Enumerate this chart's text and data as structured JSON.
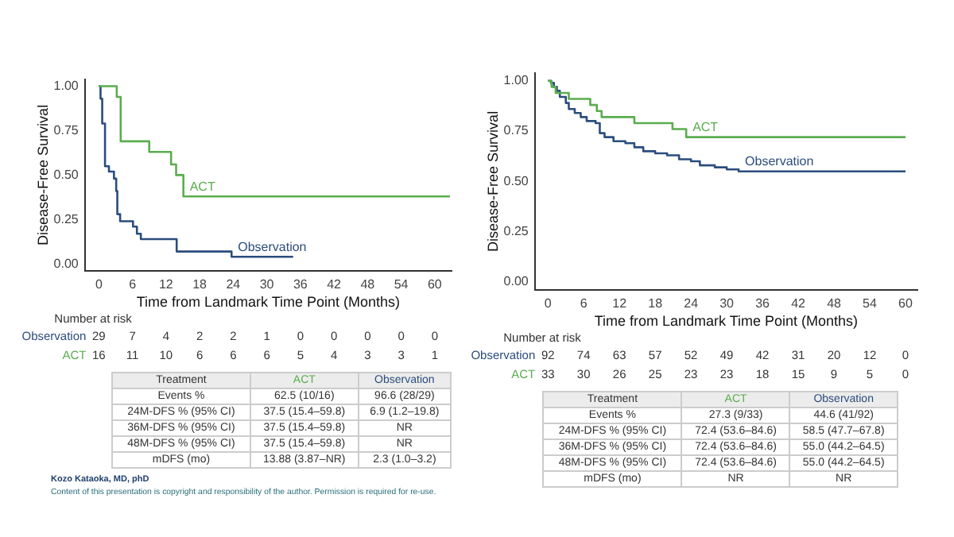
{
  "chart_data": [
    {
      "type": "step",
      "xlabel": "Time from Landmark Time Point (Months)",
      "ylabel": "Disease-Free Survival",
      "xlim": [
        -2.5,
        63
      ],
      "xticks": [
        0,
        6,
        12,
        18,
        24,
        30,
        36,
        42,
        48,
        54,
        60
      ],
      "ylim": [
        -0.04,
        1.04
      ],
      "yticks": [
        {
          "value": 0,
          "label": "0.00"
        },
        {
          "value": 0.25,
          "label": "0.25"
        },
        {
          "value": 0.5,
          "label": "0.50"
        },
        {
          "value": 0.75,
          "label": "0.75"
        },
        {
          "value": 1,
          "label": "1.00"
        }
      ],
      "grid": false,
      "legend": false,
      "marker": "none",
      "line_style": "solid",
      "series": [
        {
          "name": "ACT",
          "color": "#5aad4e",
          "x": [
            0,
            3.2,
            3.9,
            9.0,
            12.9,
            13.8,
            15.1,
            62.7
          ],
          "values": [
            1.0,
            0.94,
            0.69,
            0.63,
            0.56,
            0.5,
            0.38,
            0.38
          ]
        },
        {
          "name": "Observation",
          "color": "#2b4c7e",
          "x": [
            0,
            0.3,
            0.6,
            1.1,
            1.8,
            2.7,
            3.1,
            3.3,
            3.8,
            6.1,
            6.8,
            7.5,
            13.9,
            23.7,
            34.7
          ],
          "values": [
            1.0,
            0.93,
            0.79,
            0.55,
            0.52,
            0.48,
            0.41,
            0.28,
            0.24,
            0.21,
            0.17,
            0.14,
            0.07,
            0.04,
            0.04
          ]
        }
      ],
      "annotations": [
        "Number at risk",
        "Observation\t29\t7\t4\t2\t2\t1\t0\t0\t0\t0\t0",
        "ACT\t16\t11\t10\t6\t6\t6\t5\t4\t3\t3\t1",
        "Treatment\tACT\tObservation",
        "Events %\t62.5 (10/16)\t96.6 (28/29)",
        "24M-DFS % (95% CI)\t37.5 (15.4–59.8)\t6.9 (1.2–19.8)",
        "36M-DFS % (95% CI)\t37.5 (15.4–59.8)\tNR",
        "48M-DFS % (95% CI)\t37.5 (15.4–59.8)\tNR",
        "mDFS (mo)\t13.88 (3.87–NR)\t2.3 (1.0–3.2)",
        "Kozo Kataoka, MD, phD",
        "Content of this presentation is copyright and responsibility of the author. Permission is required for re-use."
      ]
    },
    {
      "type": "step",
      "xlabel": "Time from Landmark Time Point (Months)",
      "ylabel": "Disease-Free Survival",
      "xlim": [
        -2.2,
        62
      ],
      "xticks": [
        0,
        6,
        12,
        18,
        24,
        30,
        36,
        42,
        48,
        54,
        60
      ],
      "ylim": [
        -0.04,
        1.04
      ],
      "yticks": [
        {
          "value": 0,
          "label": "0.00"
        },
        {
          "value": 0.25,
          "label": "0.25"
        },
        {
          "value": 0.5,
          "label": "0.50"
        },
        {
          "value": 0.75,
          "label": "0.75"
        },
        {
          "value": 1,
          "label": "1.00"
        }
      ],
      "grid": false,
      "legend": false,
      "marker": "none",
      "line_style": "solid",
      "series": [
        {
          "name": "ACT",
          "color": "#5aad4e",
          "x": [
            0,
            0.6,
            1.3,
            3.5,
            7.1,
            8.2,
            9.0,
            14.5,
            20.9,
            23.2,
            60
          ],
          "values": [
            1.0,
            0.97,
            0.94,
            0.91,
            0.88,
            0.85,
            0.82,
            0.79,
            0.76,
            0.72,
            0.72
          ]
        },
        {
          "name": "Observation",
          "color": "#2b4c7e",
          "x": [
            0,
            0.5,
            1,
            1.5,
            2,
            3,
            3.5,
            4.5,
            5.5,
            6.5,
            8,
            8.7,
            9.5,
            11,
            13,
            14.5,
            16,
            18,
            20,
            22,
            24,
            25.5,
            28,
            30,
            32,
            60
          ],
          "values": [
            1.0,
            0.99,
            0.97,
            0.95,
            0.92,
            0.89,
            0.86,
            0.84,
            0.82,
            0.8,
            0.79,
            0.74,
            0.72,
            0.7,
            0.69,
            0.67,
            0.65,
            0.64,
            0.63,
            0.61,
            0.6,
            0.58,
            0.57,
            0.56,
            0.55,
            0.55
          ]
        }
      ],
      "annotations": [
        "Number at risk",
        "Observation\t92\t74\t63\t57\t52\t49\t42\t31\t20\t12\t0",
        "ACT\t33\t30\t26\t25\t23\t23\t18\t15\t9\t5\t0",
        "Treatment\tACT\tObservation",
        "Events %\t27.3 (9/33)\t44.6 (41/92)",
        "24M-DFS % (95% CI)\t72.4 (53.6–84.6)\t58.5 (47.7–67.8)",
        "36M-DFS % (95% CI)\t72.4 (53.6–84.6)\t55.0 (44.2–64.5)",
        "48M-DFS % (95% CI)\t72.4 (53.6–84.6)\t55.0 (44.2–64.5)",
        "mDFS (mo)\tNR\tNR"
      ]
    }
  ]
}
